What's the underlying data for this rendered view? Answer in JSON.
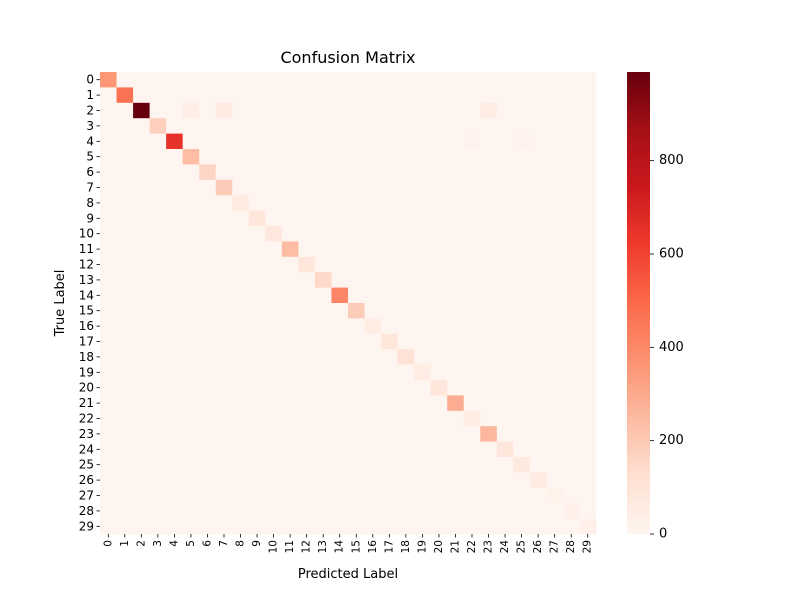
{
  "chart_data": {
    "type": "heatmap",
    "title": "Confusion Matrix",
    "xlabel": "Predicted Label",
    "ylabel": "True Label",
    "x_categories": [
      "0",
      "1",
      "2",
      "3",
      "4",
      "5",
      "6",
      "7",
      "8",
      "9",
      "10",
      "11",
      "12",
      "13",
      "14",
      "15",
      "16",
      "17",
      "18",
      "19",
      "20",
      "21",
      "22",
      "23",
      "24",
      "25",
      "26",
      "27",
      "28",
      "29"
    ],
    "y_categories": [
      "0",
      "1",
      "2",
      "3",
      "4",
      "5",
      "6",
      "7",
      "8",
      "9",
      "10",
      "11",
      "12",
      "13",
      "14",
      "15",
      "16",
      "17",
      "18",
      "19",
      "20",
      "21",
      "22",
      "23",
      "24",
      "25",
      "26",
      "27",
      "28",
      "29"
    ],
    "diagonal": [
      360,
      470,
      990,
      180,
      650,
      240,
      160,
      190,
      60,
      90,
      80,
      240,
      90,
      150,
      410,
      190,
      50,
      90,
      110,
      50,
      90,
      290,
      50,
      260,
      90,
      70,
      60,
      20,
      30,
      30
    ],
    "off_diagonal": [
      {
        "row": 2,
        "col": 5,
        "value": 40
      },
      {
        "row": 2,
        "col": 7,
        "value": 60
      },
      {
        "row": 2,
        "col": 23,
        "value": 50
      },
      {
        "row": 4,
        "col": 22,
        "value": 15
      },
      {
        "row": 4,
        "col": 25,
        "value": 15
      }
    ],
    "colormap": "Reds",
    "colorbar": {
      "min": 0,
      "max": 990,
      "ticks": [
        0,
        200,
        400,
        600,
        800
      ]
    },
    "grid": false,
    "legend": "colorbar-right"
  }
}
